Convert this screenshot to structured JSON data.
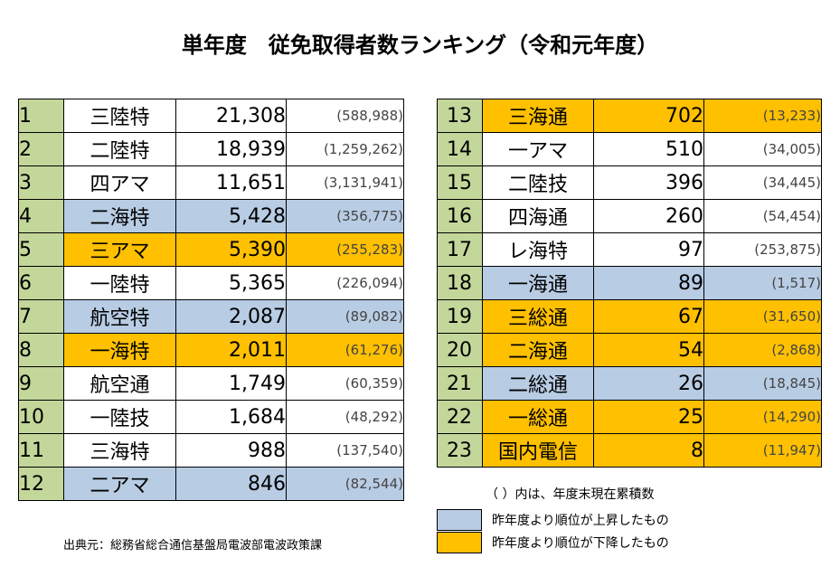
{
  "title": "単年度　従免取得者数ランキング（令和元年度）",
  "colors": {
    "rank_cell": "#c4d79b",
    "up": "#b8cce4",
    "down": "#ffc000"
  },
  "left_rows": [
    {
      "rank": "1",
      "name": "三陸特",
      "count": "21,308",
      "cumulative": "(588,988)",
      "status": "none"
    },
    {
      "rank": "2",
      "name": "二陸特",
      "count": "18,939",
      "cumulative": "(1,259,262)",
      "status": "none"
    },
    {
      "rank": "3",
      "name": "四アマ",
      "count": "11,651",
      "cumulative": "(3,131,941)",
      "status": "none"
    },
    {
      "rank": "4",
      "name": "二海特",
      "count": "5,428",
      "cumulative": "(356,775)",
      "status": "up"
    },
    {
      "rank": "5",
      "name": "三アマ",
      "count": "5,390",
      "cumulative": "(255,283)",
      "status": "down"
    },
    {
      "rank": "6",
      "name": "一陸特",
      "count": "5,365",
      "cumulative": "(226,094)",
      "status": "none"
    },
    {
      "rank": "7",
      "name": "航空特",
      "count": "2,087",
      "cumulative": "(89,082)",
      "status": "up"
    },
    {
      "rank": "8",
      "name": "一海特",
      "count": "2,011",
      "cumulative": "(61,276)",
      "status": "down"
    },
    {
      "rank": "9",
      "name": "航空通",
      "count": "1,749",
      "cumulative": "(60,359)",
      "status": "none"
    },
    {
      "rank": "10",
      "name": "一陸技",
      "count": "1,684",
      "cumulative": "(48,292)",
      "status": "none"
    },
    {
      "rank": "11",
      "name": "三海特",
      "count": "988",
      "cumulative": "(137,540)",
      "status": "none"
    },
    {
      "rank": "12",
      "name": "二アマ",
      "count": "846",
      "cumulative": "(82,544)",
      "status": "up"
    }
  ],
  "right_rows": [
    {
      "rank": "13",
      "name": "三海通",
      "count": "702",
      "cumulative": "(13,233)",
      "status": "down"
    },
    {
      "rank": "14",
      "name": "一アマ",
      "count": "510",
      "cumulative": "(34,005)",
      "status": "none"
    },
    {
      "rank": "15",
      "name": "二陸技",
      "count": "396",
      "cumulative": "(34,445)",
      "status": "none"
    },
    {
      "rank": "16",
      "name": "四海通",
      "count": "260",
      "cumulative": "(54,454)",
      "status": "none"
    },
    {
      "rank": "17",
      "name": "レ海特",
      "count": "97",
      "cumulative": "(253,875)",
      "status": "none"
    },
    {
      "rank": "18",
      "name": "一海通",
      "count": "89",
      "cumulative": "(1,517)",
      "status": "up"
    },
    {
      "rank": "19",
      "name": "三総通",
      "count": "67",
      "cumulative": "(31,650)",
      "status": "down"
    },
    {
      "rank": "20",
      "name": "二海通",
      "count": "54",
      "cumulative": "(2,868)",
      "status": "down"
    },
    {
      "rank": "21",
      "name": "二総通",
      "count": "26",
      "cumulative": "(18,845)",
      "status": "up"
    },
    {
      "rank": "22",
      "name": "一総通",
      "count": "25",
      "cumulative": "(14,290)",
      "status": "down"
    },
    {
      "rank": "23",
      "name": "国内電信",
      "count": "8",
      "cumulative": "(11,947)",
      "status": "down"
    }
  ],
  "note": "（ ）内は、年度末現在累積数",
  "legend": {
    "up_label": "昨年度より順位が上昇したもの",
    "down_label": "昨年度より順位が下降したもの"
  },
  "source": "出典元：総務省総合通信基盤局電波部電波政策課"
}
